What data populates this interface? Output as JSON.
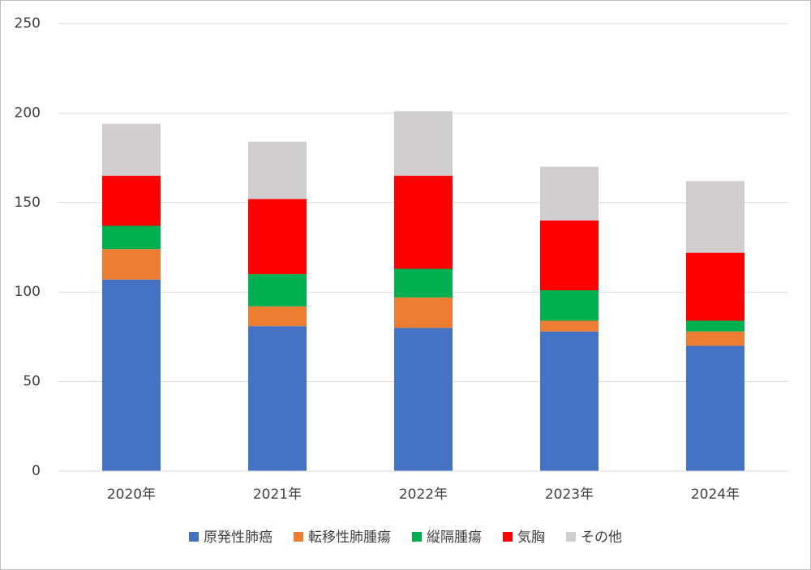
{
  "chart_data": {
    "type": "stacked-bar",
    "categories": [
      "2020年",
      "2021年",
      "2022年",
      "2023年",
      "2024年"
    ],
    "series": [
      {
        "name": "原発性肺癌",
        "color": "#4472c4",
        "values": [
          107,
          81,
          80,
          78,
          70
        ]
      },
      {
        "name": "転移性肺腫瘍",
        "color": "#ed7d31",
        "values": [
          17,
          11,
          17,
          6,
          8
        ]
      },
      {
        "name": "縦隔腫瘍",
        "color": "#00b050",
        "values": [
          13,
          18,
          16,
          17,
          6
        ]
      },
      {
        "name": "気胸",
        "color": "#ff0000",
        "values": [
          28,
          42,
          52,
          39,
          38
        ]
      },
      {
        "name": "その他",
        "color": "#d0cece",
        "values": [
          29,
          32,
          36,
          30,
          40
        ]
      }
    ],
    "ylim": [
      0,
      250
    ],
    "yticks": [
      0,
      50,
      100,
      150,
      200,
      250
    ],
    "grid": true,
    "legend": "bottom"
  }
}
